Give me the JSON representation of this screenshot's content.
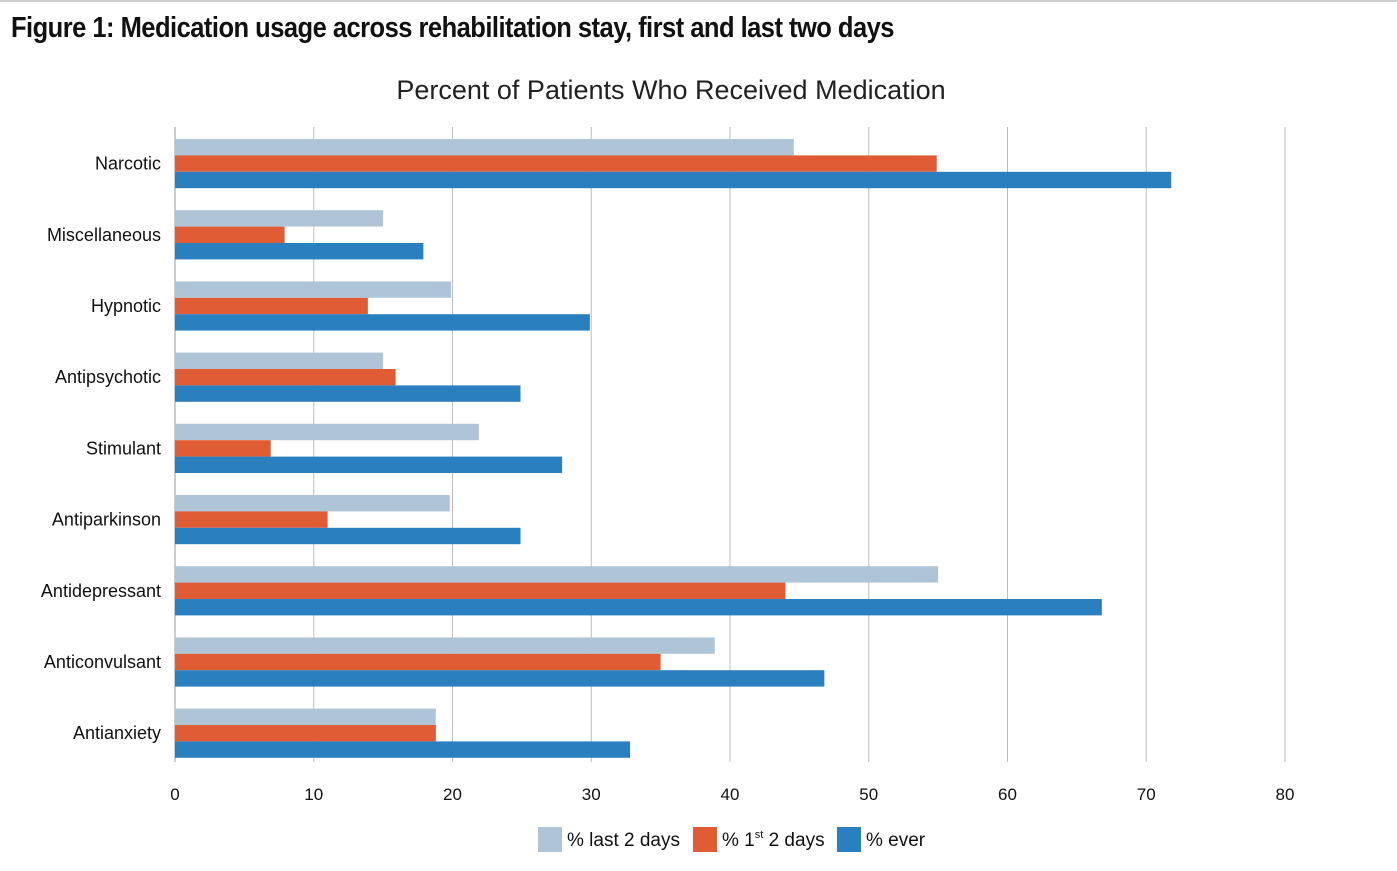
{
  "figure_title": "Figure 1: Medication usage across rehabilitation stay, first and last two days",
  "chart_data": {
    "type": "bar",
    "orientation": "horizontal",
    "title": "Percent of Patients Who Received Medication",
    "xlabel": "",
    "ylabel": "",
    "xlim": [
      0,
      80
    ],
    "xticks": [
      0,
      10,
      20,
      30,
      40,
      50,
      60,
      70,
      80
    ],
    "grid": "vertical",
    "legend_position": "bottom",
    "categories": [
      "Narcotic",
      "Miscellaneous",
      "Hypnotic",
      "Antipsychotic",
      "Stimulant",
      "Antiparkinson",
      "Antidepressant",
      "Anticonvulsant",
      "Antianxiety"
    ],
    "series": [
      {
        "name": "% last 2 days",
        "name_main": "% last 2 days",
        "color": "#b0c4d8",
        "values": [
          44.6,
          15,
          19.9,
          15,
          21.9,
          19.8,
          55,
          38.9,
          18.8
        ]
      },
      {
        "name": "% 1st 2 days",
        "name_main": "% 1",
        "name_sup": "st",
        "name_rest": " 2 days",
        "color": "#e05c35",
        "values": [
          54.9,
          7.9,
          13.9,
          15.9,
          6.9,
          11,
          44,
          35,
          18.8
        ]
      },
      {
        "name": "% ever",
        "name_main": "% ever",
        "color": "#2a7fbf",
        "values": [
          71.8,
          17.9,
          29.9,
          24.9,
          27.9,
          24.9,
          66.8,
          46.8,
          32.8
        ]
      }
    ]
  }
}
